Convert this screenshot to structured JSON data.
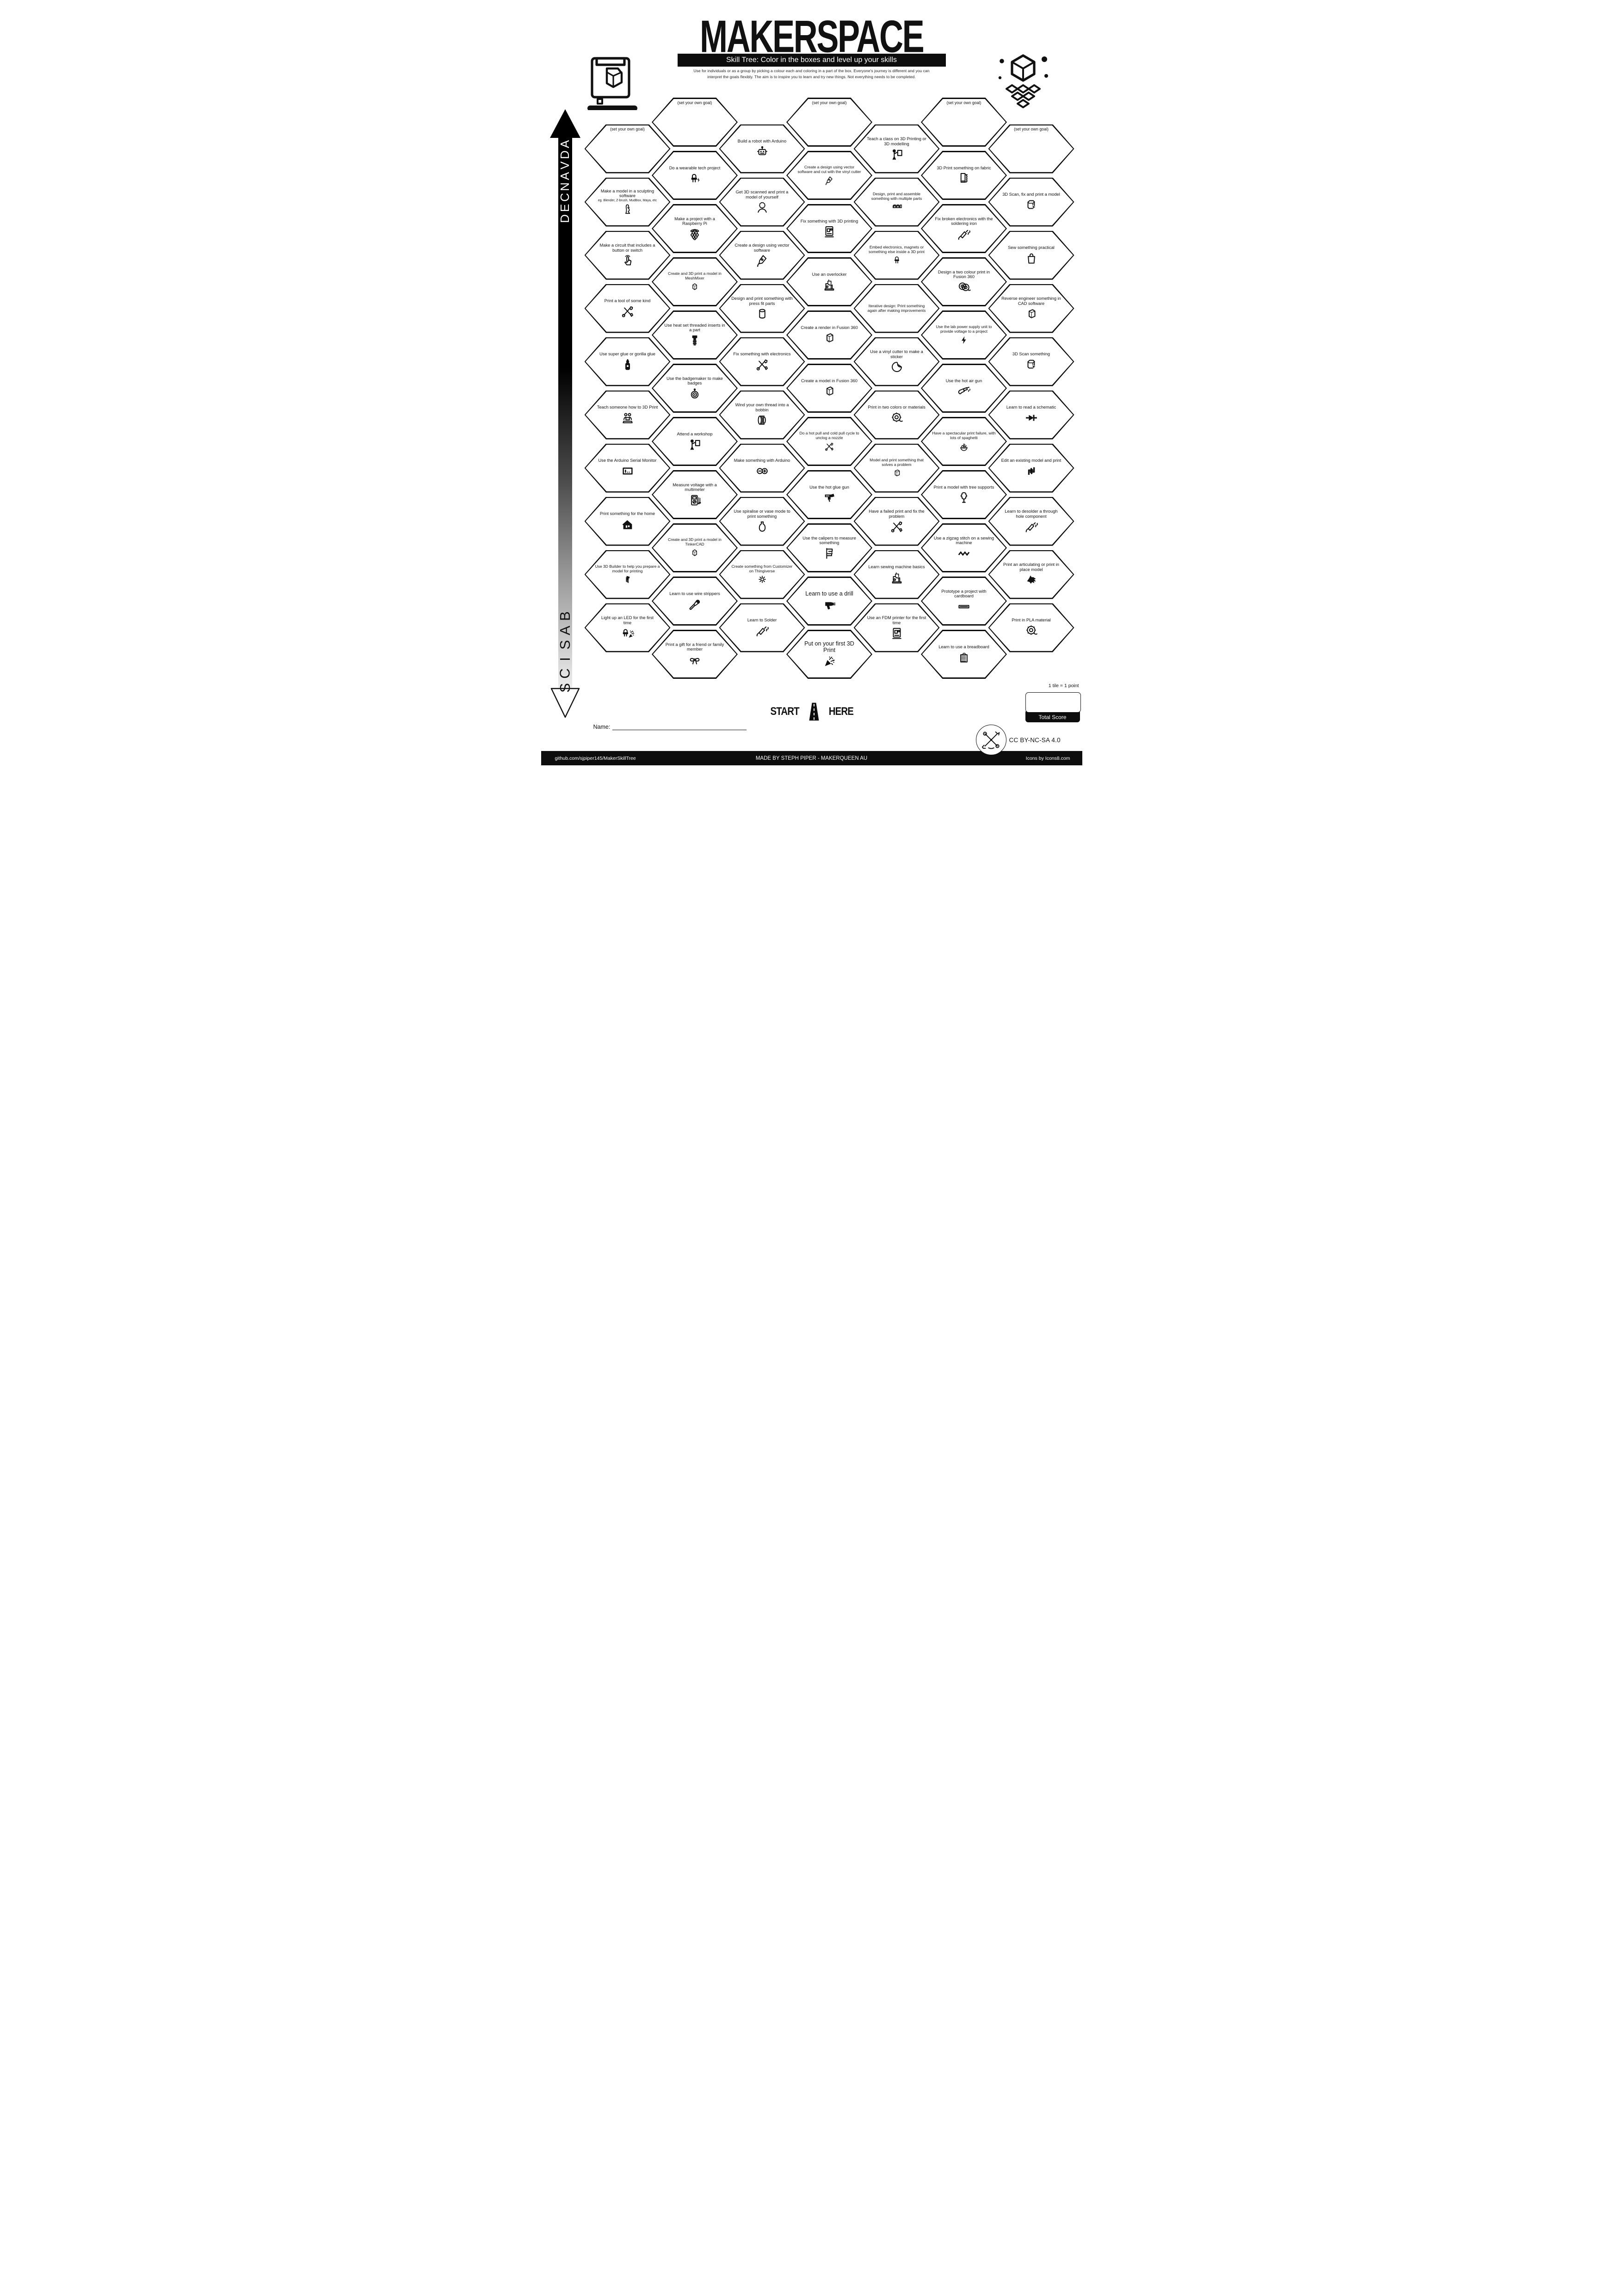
{
  "title": "MAKERSPACE",
  "subtitle": "Skill Tree:  Color in the boxes and level up your skills",
  "intro": [
    "Use for individuals or as a group by picking a colour each and coloring in a part of the box.  Everyone's journey is different and you can",
    "interpret the goals flexibly.  The aim is to inspire you to learn and try new things. Not everything needs to be completed."
  ],
  "axis": {
    "top": "ADVANCED",
    "bottom": "BASICS"
  },
  "start_here": {
    "left": "START",
    "right": "HERE"
  },
  "name_label": "Name:",
  "tile_note": "1 tile = 1 point",
  "total_score_label": "Total Score",
  "license": "CC BY-NC-SA 4.0",
  "footer": {
    "left": "github.com/sjpiper145/MakerSkillTree",
    "center": "MADE BY STEPH PIPER  -  MAKERQUEEN AU",
    "right": "Icons by Icons8.com"
  },
  "colors": {
    "ink": "#111111",
    "bar": "#0d0d0d",
    "paper": "#ffffff"
  },
  "hexes": [
    {
      "col": 1,
      "row": 0,
      "label": "(set your own goal)",
      "icon": null,
      "goal": true
    },
    {
      "col": 1,
      "row": 1,
      "label": "Make a model in a sculpting software",
      "sub": "eg. Blender, Z-brush, MudBox, Maya, etc",
      "icon": "statue"
    },
    {
      "col": 1,
      "row": 2,
      "label": "Make a circuit that includes a button or switch",
      "icon": "handpress"
    },
    {
      "col": 1,
      "row": 3,
      "label": "Print a tool of some kind",
      "icon": "tools"
    },
    {
      "col": 1,
      "row": 4,
      "label": "Use super glue or gorilla glue",
      "icon": "gluebottle"
    },
    {
      "col": 1,
      "row": 5,
      "label": "Teach someone how to 3D Print",
      "icon": "peoplelaptop"
    },
    {
      "col": 1,
      "row": 6,
      "label": "Use the Arduino Serial Monitor",
      "icon": "serial"
    },
    {
      "col": 1,
      "row": 7,
      "label": "Print something for the home",
      "icon": "house"
    },
    {
      "col": 1,
      "row": 8,
      "label": "Use 3D Builder to help you prepare a model for printing",
      "icon": "builder",
      "small": true
    },
    {
      "col": 1,
      "row": 9,
      "label": "Light up an LED for the first time",
      "icon": "ledparty"
    },
    {
      "col": 2,
      "row": 0,
      "label": "(set your own goal)",
      "icon": null,
      "goal": true
    },
    {
      "col": 2,
      "row": 1,
      "label": "Do a wearable tech project",
      "icon": "ledbolt"
    },
    {
      "col": 2,
      "row": 2,
      "label": "Make a project with a Raspberry Pi",
      "icon": "raspberry"
    },
    {
      "col": 2,
      "row": 3,
      "label": "Create and 3D print a model in MeshMixer",
      "icon": "cubedash",
      "small": true
    },
    {
      "col": 2,
      "row": 4,
      "label": "Use heat set threaded inserts in a part",
      "icon": "screw"
    },
    {
      "col": 2,
      "row": 5,
      "label": "Use the badgemaker to make badges",
      "icon": "badge"
    },
    {
      "col": 2,
      "row": 6,
      "label": "Attend a workshop",
      "icon": "presenter"
    },
    {
      "col": 2,
      "row": 7,
      "label": "Measure voltage with a multimeter",
      "icon": "multimeter"
    },
    {
      "col": 2,
      "row": 8,
      "label": "Create and 3D print a model in TinkerCAD",
      "icon": "cubedash",
      "small": true
    },
    {
      "col": 2,
      "row": 9,
      "label": "Learn to use wire strippers",
      "icon": "stripper"
    },
    {
      "col": 2,
      "row": 10,
      "label": "Print a gift for a friend or family member",
      "icon": "giftbow"
    },
    {
      "col": 3,
      "row": 0,
      "label": "Build a robot with Arduino",
      "icon": "robot"
    },
    {
      "col": 3,
      "row": 1,
      "label": "Get 3D scanned and print a model of yourself",
      "icon": "headscan"
    },
    {
      "col": 3,
      "row": 2,
      "label": "Create a  design using vector software",
      "icon": "pennib"
    },
    {
      "col": 3,
      "row": 3,
      "label": "Design and print something with press fit parts",
      "icon": "cylinder"
    },
    {
      "col": 3,
      "row": 4,
      "label": "Fix something with electronics",
      "icon": "tools"
    },
    {
      "col": 3,
      "row": 5,
      "label": "Wind your own thread into a bobbin",
      "icon": "bobbin"
    },
    {
      "col": 3,
      "row": 6,
      "label": "Make something with Arduino",
      "icon": "arduino"
    },
    {
      "col": 3,
      "row": 7,
      "label": "Use spiralise or vase mode to print something",
      "icon": "vase"
    },
    {
      "col": 3,
      "row": 8,
      "label": "Create something from Customizer on Thingiverse",
      "icon": "gear",
      "small": true
    },
    {
      "col": 3,
      "row": 9,
      "label": "Learn to Solder",
      "icon": "solderiron"
    },
    {
      "col": 4,
      "row": 0,
      "label": "(set your own goal)",
      "icon": null,
      "goal": true
    },
    {
      "col": 4,
      "row": 1,
      "label": "Create a  design using vector software and cut with the vinyl cutter",
      "icon": "pennib",
      "small": true
    },
    {
      "col": 4,
      "row": 2,
      "label": "Fix something with 3D printing",
      "icon": "printer"
    },
    {
      "col": 4,
      "row": 3,
      "label": "Use an overlocker",
      "icon": "sewing"
    },
    {
      "col": 4,
      "row": 4,
      "label": "Create a render in Fusion 360",
      "icon": "cube"
    },
    {
      "col": 4,
      "row": 5,
      "label": "Create a model in Fusion 360",
      "icon": "cube"
    },
    {
      "col": 4,
      "row": 6,
      "label": "Do a hot pull and cold pull cycle to unclog a nozzle",
      "icon": "tools",
      "small": true
    },
    {
      "col": 4,
      "row": 7,
      "label": "Use the hot glue gun",
      "icon": "gluegun"
    },
    {
      "col": 4,
      "row": 8,
      "label": "Use the calipers to measure something",
      "icon": "calipers"
    },
    {
      "col": 4,
      "row": 9,
      "label": "Learn to use a drill",
      "icon": "drill",
      "big": true
    },
    {
      "col": 4,
      "row": 10,
      "label": "Put on your first 3D Print",
      "icon": "party",
      "big": true
    },
    {
      "col": 5,
      "row": 0,
      "label": "Teach a class on 3D Printing or 3D modelling",
      "icon": "presenter"
    },
    {
      "col": 5,
      "row": 1,
      "label": "Design, print and assemble something with multiple parts",
      "icon": "cubes",
      "small": true
    },
    {
      "col": 5,
      "row": 2,
      "label": "Embed electronics, magnets or something else inside a 3D print",
      "icon": "led",
      "small": true
    },
    {
      "col": 5,
      "row": 3,
      "label": "Iterative design: Print something again after making improvements",
      "icon": null,
      "small": true
    },
    {
      "col": 5,
      "row": 4,
      "label": "Use a vinyl cutter to make a sticker",
      "icon": "sticker"
    },
    {
      "col": 5,
      "row": 5,
      "label": "Print in two colors or materials",
      "icon": "spool"
    },
    {
      "col": 5,
      "row": 6,
      "label": "Model and print something that solves a problem",
      "icon": "cube",
      "small": true
    },
    {
      "col": 5,
      "row": 7,
      "label": "Have a failed print and fix the problem",
      "icon": "tools"
    },
    {
      "col": 5,
      "row": 8,
      "label": "Learn sewing machine basics",
      "icon": "sewing"
    },
    {
      "col": 5,
      "row": 9,
      "label": "Use an FDM printer for the first time",
      "icon": "printer"
    },
    {
      "col": 6,
      "row": 0,
      "label": "(set your own goal)",
      "icon": null,
      "goal": true
    },
    {
      "col": 6,
      "row": 1,
      "label": "3D Print something on fabric",
      "icon": "fabric"
    },
    {
      "col": 6,
      "row": 2,
      "label": "Fix broken electronics with the soldering iron",
      "icon": "solderiron"
    },
    {
      "col": 6,
      "row": 3,
      "label": "Design a two colour print in Fusion 360",
      "icon": "spools2"
    },
    {
      "col": 6,
      "row": 4,
      "label": "Use the lab power supply unit to provide voltage to a project",
      "icon": "bolt",
      "small": true
    },
    {
      "col": 6,
      "row": 5,
      "label": "Use the hot air gun",
      "icon": "hotair"
    },
    {
      "col": 6,
      "row": 6,
      "label": "Have a spectacular print failure, with lots of spaghetti",
      "icon": "noodles",
      "small": true
    },
    {
      "col": 6,
      "row": 7,
      "label": "Print a model with tree supports",
      "icon": "tree"
    },
    {
      "col": 6,
      "row": 8,
      "label": "Use a zigzag stitch on a sewing machine",
      "icon": "zigzag"
    },
    {
      "col": 6,
      "row": 9,
      "label": "Prototype a project with cardboard",
      "icon": "cardboard"
    },
    {
      "col": 6,
      "row": 10,
      "label": "Learn to use a breadboard",
      "icon": "breadboard"
    },
    {
      "col": 7,
      "row": 0,
      "label": "(set your own goal)",
      "icon": null,
      "goal": true
    },
    {
      "col": 7,
      "row": 1,
      "label": "3D Scan, fix and print a model",
      "icon": "cursorcube"
    },
    {
      "col": 7,
      "row": 2,
      "label": "Sew something practical",
      "icon": "bag"
    },
    {
      "col": 7,
      "row": 3,
      "label": "Reverse engineer something in CAD software",
      "icon": "cube"
    },
    {
      "col": 7,
      "row": 4,
      "label": "3D Scan something",
      "icon": "cursorcube"
    },
    {
      "col": 7,
      "row": 5,
      "label": "Learn to read a schematic",
      "icon": "diode"
    },
    {
      "col": 7,
      "row": 6,
      "label": "Edit an existing model and print",
      "icon": "swap"
    },
    {
      "col": 7,
      "row": 7,
      "label": "Learn to desolder a through hole component",
      "icon": "solderiron"
    },
    {
      "col": 7,
      "row": 8,
      "label": "Print an articulating or print in place model",
      "icon": "dragon"
    },
    {
      "col": 7,
      "row": 9,
      "label": "Print in PLA material",
      "icon": "spool"
    }
  ]
}
